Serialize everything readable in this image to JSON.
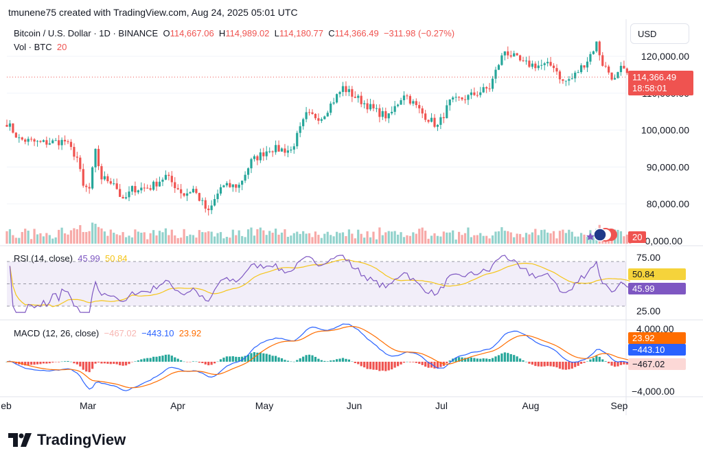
{
  "header": {
    "attribution": "tmunene75 created with TradingView.com, Aug 24, 2025 05:01 UTC"
  },
  "legend": {
    "symbol": "Bitcoin / U.S. Dollar · 1D · BINANCE",
    "open_label": "O",
    "open": "114,667.06",
    "high_label": "H",
    "high": "114,989.02",
    "low_label": "L",
    "low": "114,180.77",
    "close_label": "C",
    "close": "114,366.49",
    "change": "−311.98 (−0.27%)",
    "vol_label": "Vol · BTC",
    "vol_value": "20"
  },
  "currency_button": "USD",
  "price_axis": {
    "ticks": [
      "120,000.00",
      "100,000.00",
      "90,000.00",
      "80,000.00"
    ],
    "partial_tick_top": "110,000.00",
    "partial_tick_bottom": "0,000.00",
    "last_price": "114,366.49",
    "countdown": "18:58:01",
    "vol_tag": "20"
  },
  "rsi": {
    "title": "RSI (14, close)",
    "value": "45.99",
    "ma_value": "50.84",
    "ticks": [
      "75.00",
      "25.00"
    ]
  },
  "macd": {
    "title": "MACD (12, 26, close)",
    "hist_value": "−467.02",
    "macd_value": "−443.10",
    "signal_value": "23.92",
    "ticks": [
      "4,000.00",
      "−4,000.00"
    ]
  },
  "time_axis": [
    "eb",
    "Mar",
    "Apr",
    "May",
    "Jun",
    "Jul",
    "Aug",
    "Sep"
  ],
  "brand": "TradingView",
  "colors": {
    "up": "#26a69a",
    "down": "#ef5350",
    "rsi": "#7e57c2",
    "rsi_ma": "#f5c518",
    "macd": "#2962ff",
    "signal": "#ff6d00"
  },
  "chart_data": {
    "type": "candlestick",
    "x_start": "2025-02-01",
    "x_end": "2025-08-24",
    "ylim": [
      75000,
      125000
    ],
    "anchors": [
      [
        "2025-02-01",
        102000
      ],
      [
        "2025-02-05",
        97500
      ],
      [
        "2025-02-12",
        96500
      ],
      [
        "2025-02-20",
        97000
      ],
      [
        "2025-02-24",
        92500
      ],
      [
        "2025-02-26",
        84500
      ],
      [
        "2025-02-28",
        84000
      ],
      [
        "2025-03-02",
        94000
      ],
      [
        "2025-03-04",
        87000
      ],
      [
        "2025-03-08",
        86000
      ],
      [
        "2025-03-11",
        80500
      ],
      [
        "2025-03-14",
        84000
      ],
      [
        "2025-03-20",
        84500
      ],
      [
        "2025-03-25",
        87500
      ],
      [
        "2025-03-31",
        82500
      ],
      [
        "2025-04-03",
        84000
      ],
      [
        "2025-04-08",
        77500
      ],
      [
        "2025-04-12",
        84500
      ],
      [
        "2025-04-18",
        85000
      ],
      [
        "2025-04-22",
        91500
      ],
      [
        "2025-04-28",
        95000
      ],
      [
        "2025-05-05",
        94500
      ],
      [
        "2025-05-10",
        104000
      ],
      [
        "2025-05-15",
        103500
      ],
      [
        "2025-05-22",
        111500
      ],
      [
        "2025-05-26",
        109000
      ],
      [
        "2025-06-02",
        105000
      ],
      [
        "2025-06-06",
        103500
      ],
      [
        "2025-06-11",
        110000
      ],
      [
        "2025-06-17",
        104500
      ],
      [
        "2025-06-22",
        101000
      ],
      [
        "2025-06-26",
        107500
      ],
      [
        "2025-07-02",
        109000
      ],
      [
        "2025-07-09",
        111500
      ],
      [
        "2025-07-12",
        118000
      ],
      [
        "2025-07-14",
        121500
      ],
      [
        "2025-07-20",
        118000
      ],
      [
        "2025-07-25",
        117500
      ],
      [
        "2025-07-30",
        117500
      ],
      [
        "2025-08-02",
        113000
      ],
      [
        "2025-08-05",
        114000
      ],
      [
        "2025-08-10",
        119000
      ],
      [
        "2025-08-13",
        123500
      ],
      [
        "2025-08-15",
        118000
      ],
      [
        "2025-08-19",
        113500
      ],
      [
        "2025-08-21",
        116500
      ],
      [
        "2025-08-24",
        114366
      ]
    ],
    "volume_max_btc": 70,
    "rsi_range": [
      25,
      75
    ],
    "macd_range": [
      -4000,
      4000
    ]
  }
}
